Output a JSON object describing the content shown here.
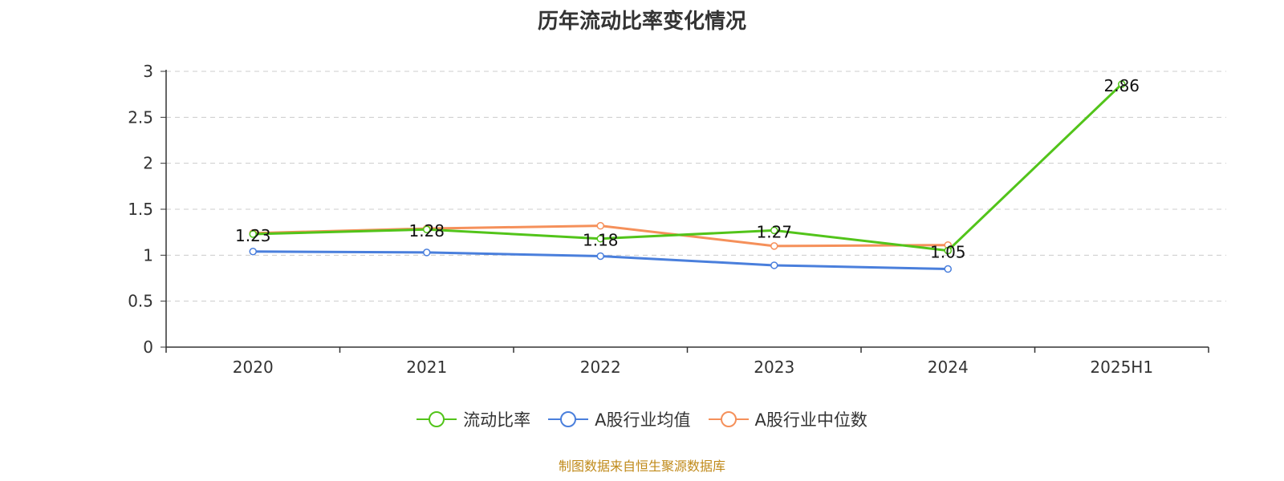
{
  "chart_data": {
    "type": "line",
    "title": "历年流动比率变化情况",
    "categories": [
      "2020",
      "2021",
      "2022",
      "2023",
      "2024",
      "2025H1"
    ],
    "ylim": [
      0,
      3
    ],
    "yticks": [
      "0",
      "0.5",
      "1",
      "1.5",
      "2",
      "2.5",
      "3"
    ],
    "grid": true,
    "legend_position": "bottom",
    "series": [
      {
        "name": "流动比率",
        "color": "#52c41a",
        "values": [
          1.23,
          1.28,
          1.18,
          1.27,
          1.05,
          2.86
        ],
        "labels": [
          "1.23",
          "1.28",
          "1.18",
          "1.27",
          "1.05",
          "2.86"
        ]
      },
      {
        "name": "A股行业均值",
        "color": "#4a7fdc",
        "values": [
          1.04,
          1.03,
          0.99,
          0.89,
          0.85,
          null
        ]
      },
      {
        "name": "A股行业中位数",
        "color": "#f5905a",
        "values": [
          1.24,
          1.29,
          1.32,
          1.1,
          1.11,
          null
        ]
      }
    ],
    "source": "制图数据来自恒生聚源数据库"
  }
}
